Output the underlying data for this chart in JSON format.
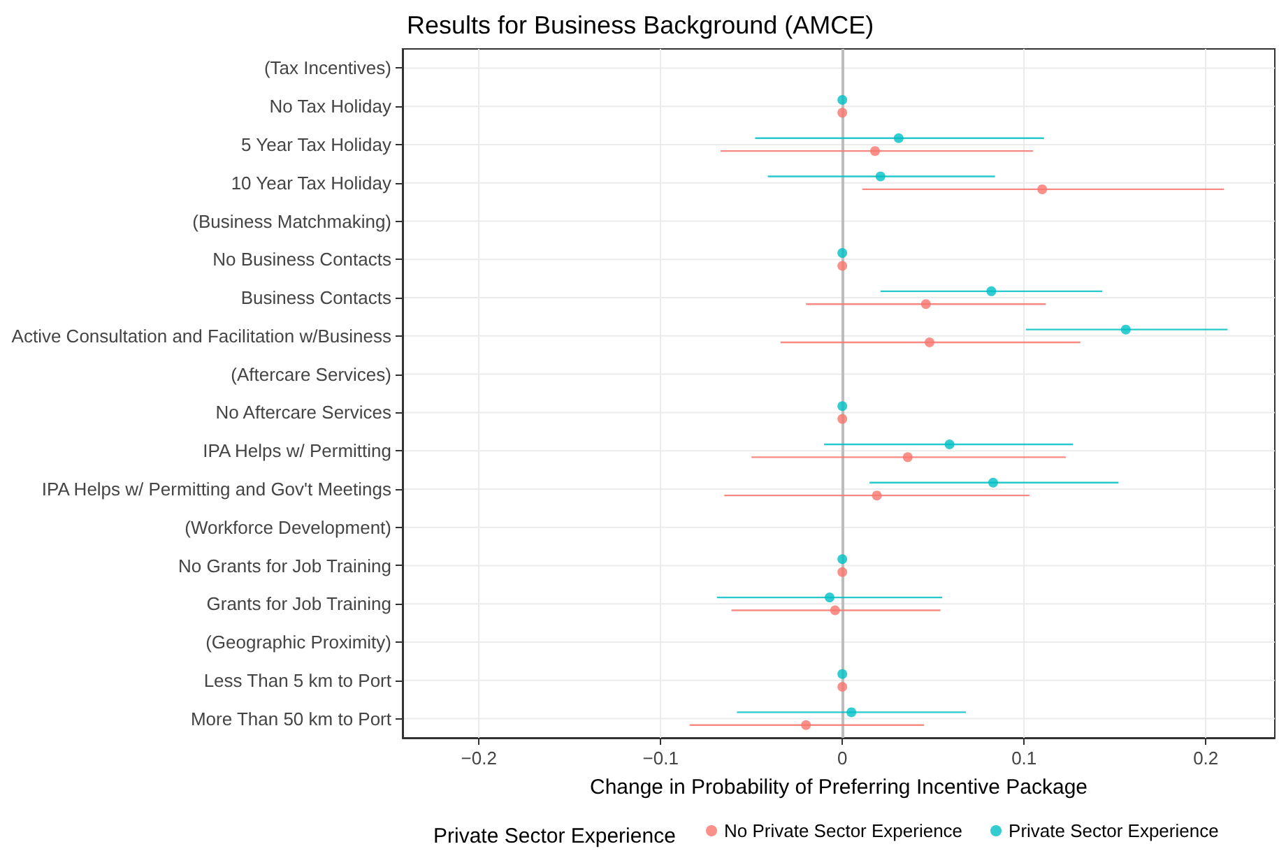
{
  "chart_data": {
    "type": "scatter",
    "orientation": "horizontal",
    "title": "Results for Business Background (AMCE)",
    "xlabel": "Change in Probability of Preferring Incentive Package",
    "legend_title": "Private Sector Experience",
    "categories": [
      "(Tax Incentives)",
      "No Tax Holiday",
      "5 Year Tax Holiday",
      "10 Year Tax Holiday",
      "(Business Matchmaking)",
      "No Business Contacts",
      "Business Contacts",
      "Active Consultation and Facilitation w/Business",
      "(Aftercare Services)",
      "No Aftercare Services",
      "IPA Helps w/ Permitting",
      "IPA Helps w/ Permitting and Gov't Meetings",
      "(Workforce Development)",
      "No Grants for Job Training",
      "Grants for Job Training",
      "(Geographic Proximity)",
      "Less Than 5 km to Port",
      "More Than 50 km to Port"
    ],
    "series": [
      {
        "name": "No Private Sector Experience",
        "color": "#f8766d",
        "values": [
          null,
          0,
          0.018,
          0.11,
          null,
          0,
          0.046,
          0.048,
          null,
          0,
          0.036,
          0.019,
          null,
          0,
          -0.004,
          null,
          0,
          -0.02
        ],
        "errors": [
          null,
          null,
          [
            -0.067,
            0.105
          ],
          [
            0.011,
            0.21
          ],
          null,
          null,
          [
            -0.02,
            0.112
          ],
          [
            -0.034,
            0.131
          ],
          null,
          null,
          [
            -0.05,
            0.123
          ],
          [
            -0.065,
            0.103
          ],
          null,
          null,
          [
            -0.061,
            0.054
          ],
          null,
          null,
          [
            -0.084,
            0.045
          ]
        ]
      },
      {
        "name": "Private Sector Experience",
        "color": "#00bfc4",
        "values": [
          null,
          0,
          0.031,
          0.021,
          null,
          0,
          0.082,
          0.156,
          null,
          0,
          0.059,
          0.083,
          null,
          0,
          -0.007,
          null,
          0,
          0.005
        ],
        "errors": [
          null,
          null,
          [
            -0.048,
            0.111
          ],
          [
            -0.041,
            0.084
          ],
          null,
          null,
          [
            0.021,
            0.143
          ],
          [
            0.101,
            0.212
          ],
          null,
          null,
          [
            -0.01,
            0.127
          ],
          [
            0.015,
            0.152
          ],
          null,
          null,
          [
            -0.069,
            0.055
          ],
          null,
          null,
          [
            -0.058,
            0.068
          ]
        ]
      }
    ],
    "xlim": [
      -0.242,
      0.238
    ],
    "xticks": [
      {
        "value": -0.2,
        "label": "−0.2"
      },
      {
        "value": -0.1,
        "label": "−0.1"
      },
      0,
      0.1,
      0.2
    ],
    "ref_lines": [
      {
        "axis": "x",
        "value": 0,
        "color": "#bdbdbd"
      }
    ],
    "grid": true,
    "legend": "bottom",
    "marker": "circle"
  }
}
